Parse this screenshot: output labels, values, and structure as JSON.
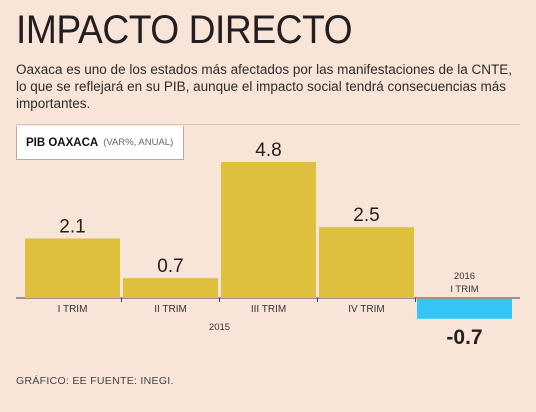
{
  "headline": "IMPACTO DIRECTO",
  "lede": "Oaxaca es uno de los estados más afectados por las manifestaciones de la CNTE, lo que se reflejará en su PIB, aunque el impacto social tendrá consecuencias más importantes.",
  "chart_label": {
    "main": "PIB OAXACA",
    "sub": "(VAR%, ANUAL)"
  },
  "credit": "GRÁFICO: EE FUENTE: INEGI.",
  "colors": {
    "positive": "#dfbf3e",
    "negative": "#33c6f4",
    "background": "#f9e5d8",
    "axis": "#444444"
  },
  "chart_data": {
    "type": "bar",
    "title": "PIB OAXACA",
    "subtitle": "(VAR%, ANUAL)",
    "categories": [
      "I TRIM",
      "II TRIM",
      "III TRIM",
      "IV TRIM",
      "I TRIM"
    ],
    "years": [
      "2015",
      "2015",
      "2015",
      "2015",
      "2016"
    ],
    "year_labels": [
      "2015",
      "2016"
    ],
    "values": [
      2.1,
      0.7,
      4.8,
      2.5,
      -0.7
    ],
    "data_labels": [
      "2.1",
      "0.7",
      "4.8",
      "2.5",
      "-0.7"
    ],
    "ylim": [
      -0.7,
      4.8
    ],
    "grid": false,
    "xlabel": "",
    "ylabel": ""
  }
}
